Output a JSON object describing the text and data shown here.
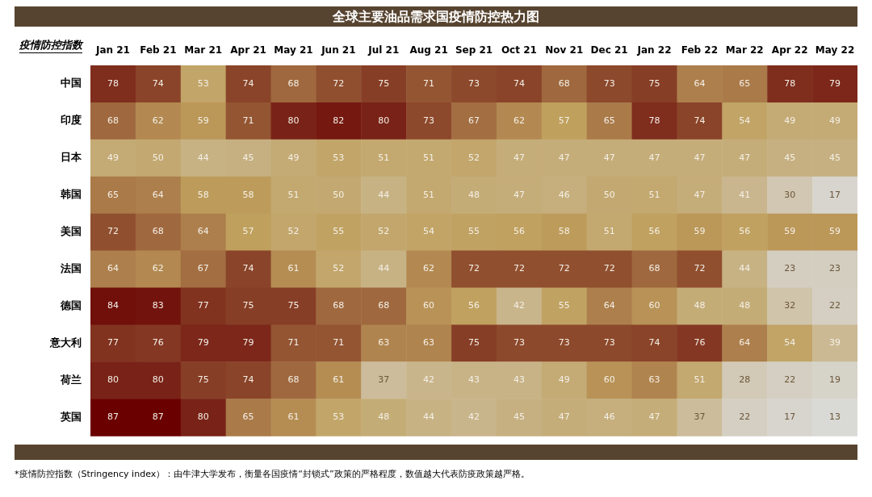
{
  "chart_data": {
    "type": "heatmap",
    "title": "全球主要油品需求国疫情防控热力图",
    "ylabel": "疫情防控指数",
    "categories": [
      "Jan 21",
      "Feb 21",
      "Mar 21",
      "Apr 21",
      "May 21",
      "Jun 21",
      "Jul 21",
      "Aug 21",
      "Sep 21",
      "Oct 21",
      "Nov 21",
      "Dec 21",
      "Jan 22",
      "Feb 22",
      "Mar 22",
      "Apr 22",
      "May 22"
    ],
    "y_categories": [
      "中国",
      "印度",
      "日本",
      "韩国",
      "美国",
      "法国",
      "德国",
      "意大利",
      "荷兰",
      "英国"
    ],
    "cells": [
      [
        78,
        74,
        53,
        74,
        68,
        72,
        75,
        71,
        73,
        74,
        68,
        73,
        75,
        64,
        65,
        78,
        79
      ],
      [
        68,
        62,
        59,
        71,
        80,
        82,
        80,
        73,
        67,
        62,
        57,
        65,
        78,
        74,
        54,
        49,
        49
      ],
      [
        49,
        50,
        44,
        45,
        49,
        53,
        51,
        51,
        52,
        47,
        47,
        47,
        47,
        47,
        47,
        45,
        45
      ],
      [
        65,
        64,
        58,
        58,
        51,
        50,
        44,
        51,
        48,
        47,
        46,
        50,
        51,
        47,
        41,
        30,
        17
      ],
      [
        72,
        68,
        64,
        57,
        52,
        55,
        52,
        54,
        55,
        56,
        58,
        51,
        56,
        59,
        56,
        59,
        59
      ],
      [
        64,
        62,
        67,
        74,
        61,
        52,
        44,
        62,
        72,
        72,
        72,
        72,
        68,
        72,
        44,
        23,
        23
      ],
      [
        84,
        83,
        77,
        75,
        75,
        68,
        68,
        60,
        56,
        42,
        55,
        64,
        60,
        48,
        48,
        32,
        22
      ],
      [
        77,
        76,
        79,
        79,
        71,
        71,
        63,
        63,
        75,
        73,
        73,
        73,
        74,
        76,
        64,
        54,
        39
      ],
      [
        80,
        80,
        75,
        74,
        68,
        61,
        37,
        42,
        43,
        43,
        49,
        60,
        63,
        51,
        28,
        22,
        19
      ],
      [
        87,
        87,
        80,
        65,
        61,
        53,
        48,
        44,
        42,
        45,
        47,
        46,
        47,
        37,
        22,
        17,
        13
      ]
    ],
    "data_labels": true,
    "annotations": [
      "*疫情防控指数（Stringency index）：由牛津大学发布，衡量各国疫情“封锁式”政策的严格程度，数值越大代表防疫政策越严格。"
    ]
  }
}
